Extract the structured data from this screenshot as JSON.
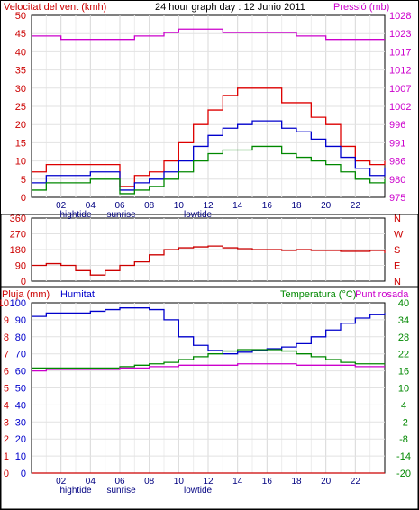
{
  "top": {
    "title": "24 hour graph day : 12 Junio 2011",
    "left_label": "Velocitat del vent (kmh)",
    "right_label": "Pressió (mb)",
    "left_ticks": [
      "0",
      "5",
      "10",
      "15",
      "20",
      "25",
      "30",
      "35",
      "40",
      "45",
      "50"
    ],
    "right_ticks": [
      "975",
      "980",
      "986",
      "991",
      "996",
      "1002",
      "1007",
      "1012",
      "1017",
      "1023",
      "1028"
    ],
    "colors": {
      "left_label": "#cc0000",
      "right_label": "#cc00cc"
    }
  },
  "middle": {
    "left_ticks": [
      "0",
      "90",
      "180",
      "270",
      "360"
    ],
    "right_ticks": [
      "N",
      "E",
      "S",
      "W",
      "N"
    ],
    "colors": {
      "labels": "#cc0000"
    }
  },
  "bottom": {
    "label_rain": "Pluja (mm)",
    "label_humidity": "Humitat",
    "label_temp": "Temperatura (°C)",
    "label_dew": "Punt rosada",
    "rain_ticks": [
      "0",
      "1",
      "2",
      "3",
      "4",
      "5",
      "6",
      "7",
      "8",
      "9",
      "10"
    ],
    "humidity_ticks": [
      "0",
      "10",
      "20",
      "30",
      "40",
      "50",
      "60",
      "70",
      "80",
      "90",
      "100"
    ],
    "temp_ticks": [
      "-20",
      "-14",
      "-8",
      "-2",
      "4",
      "10",
      "16",
      "22",
      "28",
      "34",
      "40"
    ],
    "colors": {
      "rain": "#cc0000",
      "humidity": "#0000cc",
      "temp": "#008800",
      "dew": "#cc00cc"
    }
  },
  "x_axis": {
    "hour_labels": [
      "02",
      "04",
      "06",
      "08",
      "10",
      "12",
      "14",
      "16",
      "18",
      "20",
      "22"
    ],
    "tide_labels": [
      "hightide",
      "lowtide"
    ],
    "sunrise_label": "sunrise"
  },
  "chart_data": [
    {
      "type": "line",
      "title": "24 hour graph day : 12 Junio 2011",
      "x_unit": "hour",
      "xlim": [
        0,
        24
      ],
      "ylabel": "Velocitat del vent (kmh)",
      "ylim": [
        0,
        50
      ],
      "y2label": "Pressió (mb)",
      "y2lim": [
        975,
        1028
      ],
      "x": [
        0,
        1,
        2,
        3,
        4,
        5,
        6,
        7,
        8,
        9,
        10,
        11,
        12,
        13,
        14,
        15,
        16,
        17,
        18,
        19,
        20,
        21,
        22,
        23,
        24
      ],
      "series": [
        {
          "name": "",
          "axis": "left",
          "color": "#dd0000",
          "values": [
            7,
            9,
            9,
            9,
            9,
            9,
            3,
            6,
            7,
            10,
            15,
            20,
            24,
            28,
            30,
            30,
            30,
            26,
            26,
            22,
            20,
            14,
            10,
            9,
            10
          ]
        },
        {
          "name": "",
          "axis": "left",
          "color": "#0000cc",
          "values": [
            4,
            6,
            6,
            6,
            7,
            7,
            2,
            4,
            5,
            7,
            10,
            14,
            17,
            19,
            20,
            21,
            21,
            19,
            18,
            16,
            14,
            11,
            8,
            6,
            8
          ]
        },
        {
          "name": "",
          "axis": "left",
          "color": "#008800",
          "values": [
            2,
            4,
            4,
            4,
            5,
            5,
            1,
            2,
            3,
            5,
            7,
            10,
            12,
            13,
            13,
            14,
            14,
            12,
            11,
            10,
            9,
            7,
            5,
            4,
            5
          ]
        },
        {
          "name": "",
          "axis": "right",
          "color": "#cc00cc",
          "values": [
            1022,
            1022,
            1021,
            1021,
            1021,
            1021,
            1021,
            1022,
            1022,
            1023,
            1024,
            1024,
            1024,
            1023,
            1023,
            1023,
            1023,
            1023,
            1022,
            1022,
            1021,
            1021,
            1021,
            1021,
            1021
          ]
        }
      ]
    },
    {
      "type": "line",
      "x_unit": "hour",
      "xlim": [
        0,
        24
      ],
      "ylim": [
        0,
        360
      ],
      "x": [
        0,
        1,
        2,
        3,
        4,
        5,
        6,
        7,
        8,
        9,
        10,
        11,
        12,
        13,
        14,
        15,
        16,
        17,
        18,
        19,
        20,
        21,
        22,
        23,
        24
      ],
      "series": [
        {
          "name": "",
          "color": "#cc0000",
          "values": [
            90,
            100,
            90,
            60,
            35,
            60,
            90,
            110,
            150,
            180,
            190,
            195,
            200,
            190,
            185,
            180,
            180,
            175,
            180,
            175,
            175,
            170,
            170,
            175,
            160
          ]
        }
      ]
    },
    {
      "type": "line",
      "x_unit": "hour",
      "xlim": [
        0,
        24
      ],
      "ylabel": "Humitat",
      "ylim": [
        0,
        100
      ],
      "y2label": "Temperatura (°C)",
      "y2lim": [
        -20,
        40
      ],
      "x": [
        0,
        1,
        2,
        3,
        4,
        5,
        6,
        7,
        8,
        9,
        10,
        11,
        12,
        13,
        14,
        15,
        16,
        17,
        18,
        19,
        20,
        21,
        22,
        23,
        24
      ],
      "series": [
        {
          "name": "Pluja (mm)",
          "axis": "rain",
          "color": "#cc0000",
          "values": [
            0,
            0,
            0,
            0,
            0,
            0,
            0,
            0,
            0,
            0,
            0,
            0,
            0,
            0,
            0,
            0,
            0,
            0,
            0,
            0,
            0,
            0,
            0,
            0,
            0
          ]
        },
        {
          "name": "Humitat",
          "axis": "left",
          "color": "#0000cc",
          "values": [
            92,
            94,
            94,
            94,
            95,
            96,
            97,
            97,
            96,
            90,
            80,
            75,
            72,
            70,
            71,
            72,
            73,
            74,
            76,
            80,
            84,
            88,
            91,
            93,
            94
          ]
        },
        {
          "name": "Temperatura (°C)",
          "axis": "right",
          "color": "#008800",
          "values": [
            17,
            17,
            17,
            17,
            17,
            17,
            17.5,
            18,
            18.5,
            19,
            20,
            21,
            22,
            23,
            23.5,
            23.5,
            23.5,
            23,
            22,
            21,
            20,
            19,
            18.5,
            18.5,
            18.5
          ]
        },
        {
          "name": "Punt rosada",
          "axis": "right",
          "color": "#cc00cc",
          "values": [
            16,
            16.5,
            16.5,
            16.5,
            16.5,
            16.5,
            17,
            17,
            17.5,
            17.5,
            18,
            18,
            18,
            18,
            18.5,
            18.5,
            18.5,
            18.5,
            18,
            18,
            18,
            18,
            17.5,
            17.5,
            17.5
          ]
        }
      ]
    }
  ]
}
